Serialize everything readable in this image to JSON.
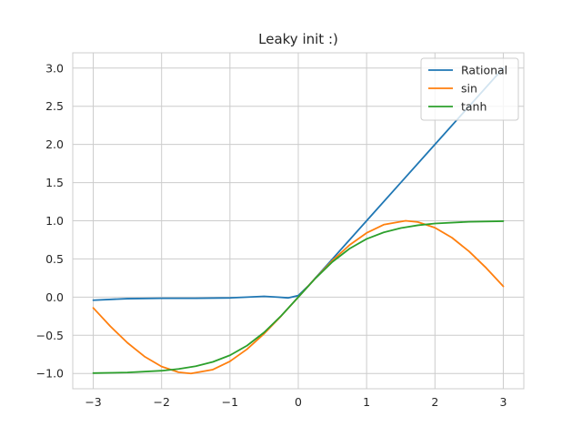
{
  "chart_data": {
    "type": "line",
    "title": "Leaky init :)",
    "xlabel": "",
    "ylabel": "",
    "xlim": [
      -3.3,
      3.3
    ],
    "ylim": [
      -1.2,
      3.2
    ],
    "grid": true,
    "legend_position": "top-right",
    "x_ticks": [
      -3,
      -2,
      -1,
      0,
      1,
      2,
      3
    ],
    "x_tick_labels": [
      "−3",
      "−2",
      "−1",
      "0",
      "1",
      "2",
      "3"
    ],
    "y_ticks": [
      -1.0,
      -0.5,
      0.0,
      0.5,
      1.0,
      1.5,
      2.0,
      2.5,
      3.0
    ],
    "y_tick_labels": [
      "−1.0",
      "−0.5",
      "0.0",
      "0.5",
      "1.0",
      "1.5",
      "2.0",
      "2.5",
      "3.0"
    ],
    "series": [
      {
        "name": "Rational",
        "color": "#1f77b4",
        "x": [
          -3,
          -2.5,
          -2,
          -1.5,
          -1,
          -0.75,
          -0.5,
          -0.3,
          -0.15,
          0,
          0.15,
          0.3,
          0.5,
          1,
          1.5,
          2,
          2.5,
          3
        ],
        "y": [
          -0.04,
          -0.02,
          -0.015,
          -0.015,
          -0.01,
          0.0,
          0.01,
          0.0,
          -0.01,
          0.02,
          0.15,
          0.3,
          0.5,
          1.0,
          1.5,
          2.0,
          2.5,
          3.0
        ]
      },
      {
        "name": "sin",
        "color": "#ff7f0e",
        "x": [
          -3,
          -2.75,
          -2.5,
          -2.25,
          -2,
          -1.75,
          -1.5708,
          -1.25,
          -1,
          -0.75,
          -0.5,
          -0.25,
          0,
          0.25,
          0.5,
          0.75,
          1,
          1.25,
          1.5708,
          1.75,
          2,
          2.25,
          2.5,
          2.75,
          3
        ],
        "y": [
          -0.141,
          -0.382,
          -0.598,
          -0.778,
          -0.909,
          -0.984,
          -1.0,
          -0.949,
          -0.841,
          -0.682,
          -0.479,
          -0.247,
          0.0,
          0.247,
          0.479,
          0.682,
          0.841,
          0.949,
          1.0,
          0.984,
          0.909,
          0.778,
          0.598,
          0.382,
          0.141
        ]
      },
      {
        "name": "tanh",
        "color": "#2ca02c",
        "x": [
          -3,
          -2.5,
          -2,
          -1.75,
          -1.5,
          -1.25,
          -1,
          -0.75,
          -0.5,
          -0.25,
          0,
          0.25,
          0.5,
          0.75,
          1,
          1.25,
          1.5,
          1.75,
          2,
          2.5,
          3
        ],
        "y": [
          -0.995,
          -0.987,
          -0.964,
          -0.941,
          -0.905,
          -0.848,
          -0.762,
          -0.635,
          -0.462,
          -0.245,
          0.0,
          0.245,
          0.462,
          0.635,
          0.762,
          0.848,
          0.905,
          0.941,
          0.964,
          0.987,
          0.995
        ]
      }
    ]
  }
}
